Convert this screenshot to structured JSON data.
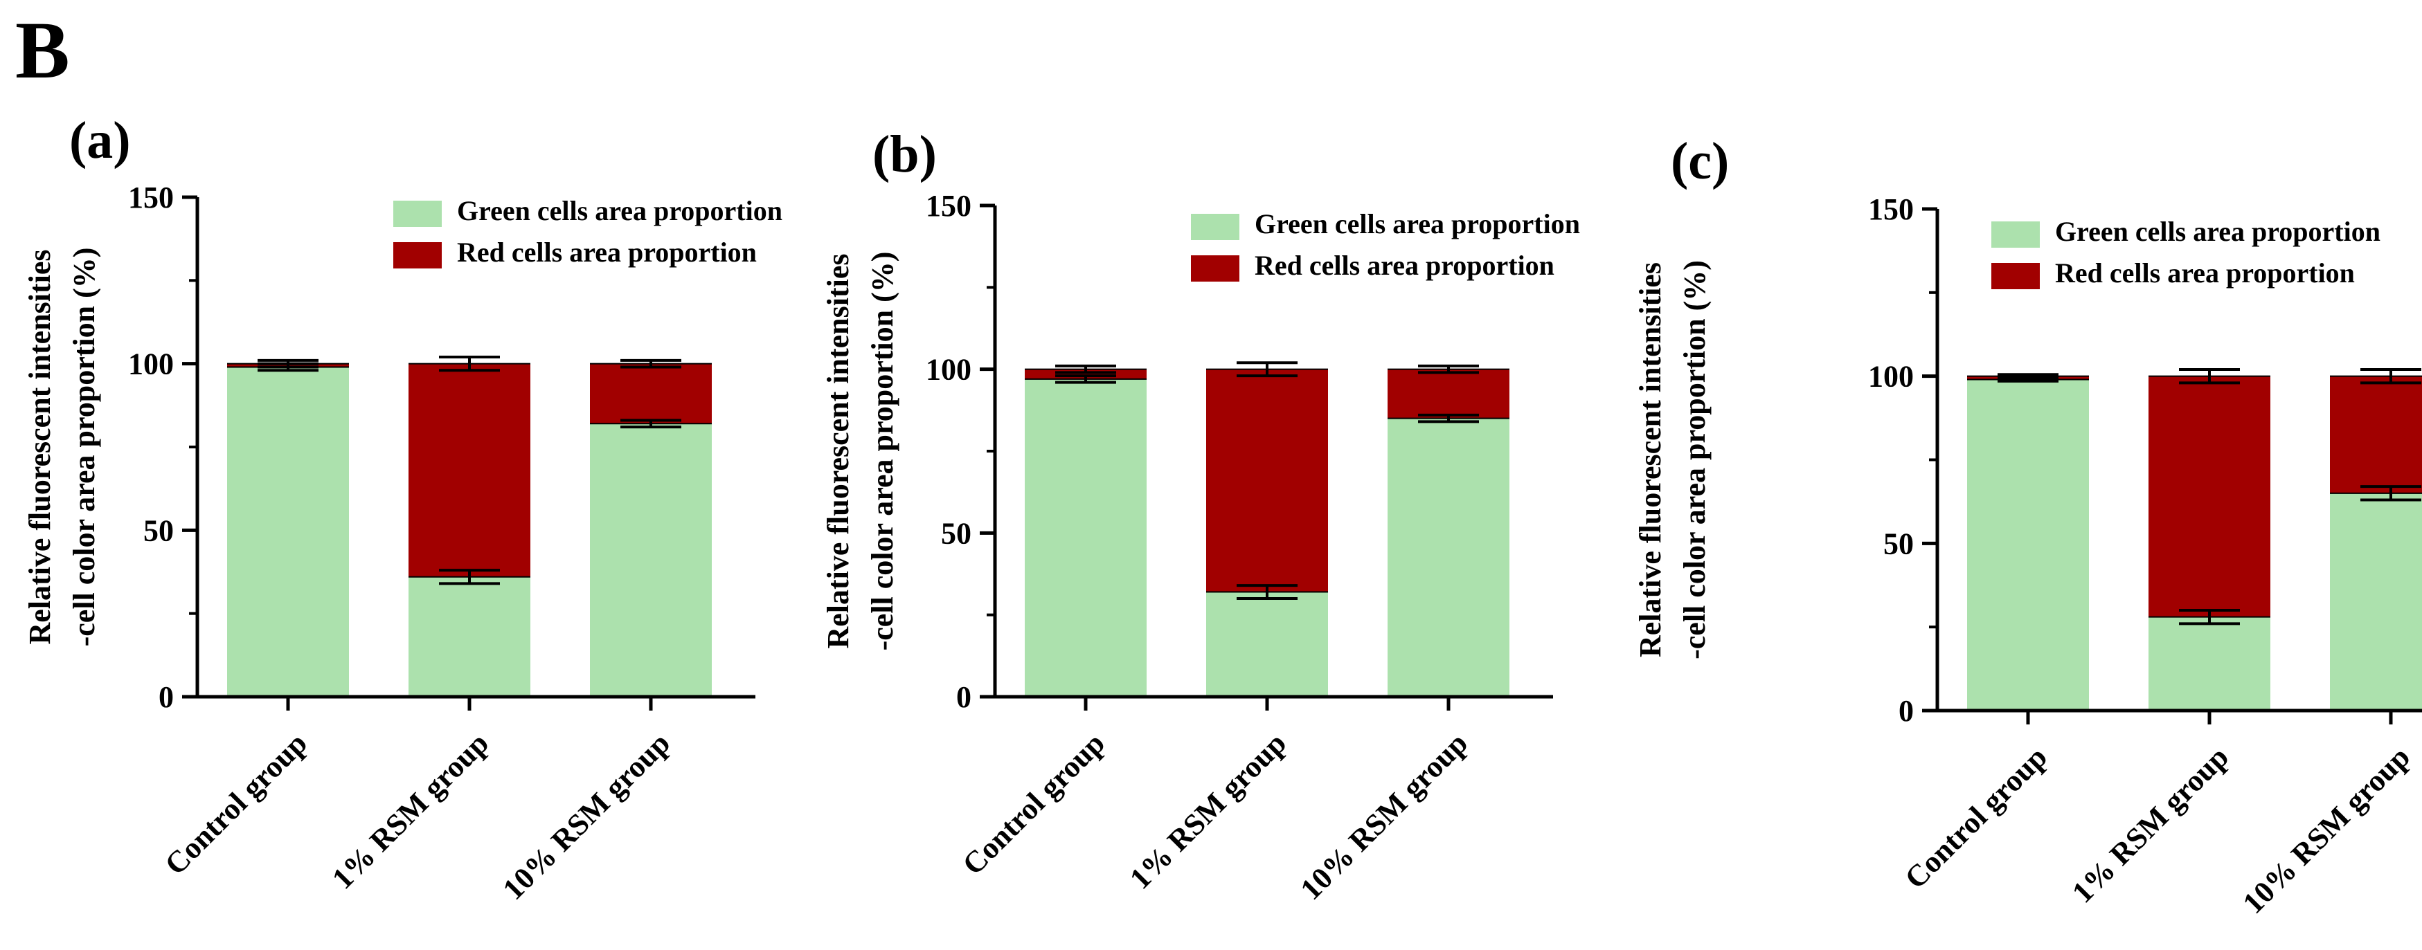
{
  "figure": {
    "label": "B"
  },
  "colors": {
    "green": "#ace1ad",
    "red": "#a10000",
    "axis": "#000000"
  },
  "chart_data": [
    {
      "type": "bar",
      "stacked": true,
      "panel": "(a)",
      "ylabel_line1": "Relative fluorescent intensities",
      "ylabel_line2": "-cell color area proportion (%)",
      "ylim": [
        0,
        150
      ],
      "yticks": [
        "0",
        "50",
        "100",
        "150"
      ],
      "categories": [
        "Control group",
        "1% RSM group",
        "10% RSM group"
      ],
      "legend": [
        "Green cells area proportion",
        "Red cells area proportion"
      ],
      "series": [
        {
          "name": "Green cells area proportion",
          "values": [
            99,
            36,
            82
          ],
          "err": [
            1,
            2,
            1
          ]
        },
        {
          "name": "Red cells area proportion",
          "values": [
            1,
            64,
            18
          ],
          "err": [
            1,
            2,
            1
          ]
        }
      ]
    },
    {
      "type": "bar",
      "stacked": true,
      "panel": "(b)",
      "ylabel_line1": "Relative fluorescent intensities",
      "ylabel_line2": "-cell color area proportion (%)",
      "ylim": [
        0,
        150
      ],
      "yticks": [
        "0",
        "50",
        "100",
        "150"
      ],
      "categories": [
        "Control group",
        "1% RSM group",
        "10% RSM group"
      ],
      "legend": [
        "Green cells area proportion",
        "Red cells area proportion"
      ],
      "series": [
        {
          "name": "Green cells area proportion",
          "values": [
            97,
            32,
            85
          ],
          "err": [
            1,
            2,
            1
          ]
        },
        {
          "name": "Red cells area proportion",
          "values": [
            3,
            68,
            15
          ],
          "err": [
            1,
            2,
            1
          ]
        }
      ]
    },
    {
      "type": "bar",
      "stacked": true,
      "panel": "(c)",
      "ylabel_line1": "Relative fluorescent intensities",
      "ylabel_line2": "-cell color area proportion (%)",
      "ylim": [
        0,
        150
      ],
      "yticks": [
        "0",
        "50",
        "100",
        "150"
      ],
      "categories": [
        "Control group",
        "1% RSM group",
        "10% RSM group"
      ],
      "legend": [
        "Green cells area proportion",
        "Red cells area proportion"
      ],
      "series": [
        {
          "name": "Green cells area proportion",
          "values": [
            99,
            28,
            65
          ],
          "err": [
            0.5,
            2,
            2
          ]
        },
        {
          "name": "Red cells area proportion",
          "values": [
            1,
            72,
            35
          ],
          "err": [
            0.5,
            2,
            2
          ]
        }
      ]
    }
  ]
}
